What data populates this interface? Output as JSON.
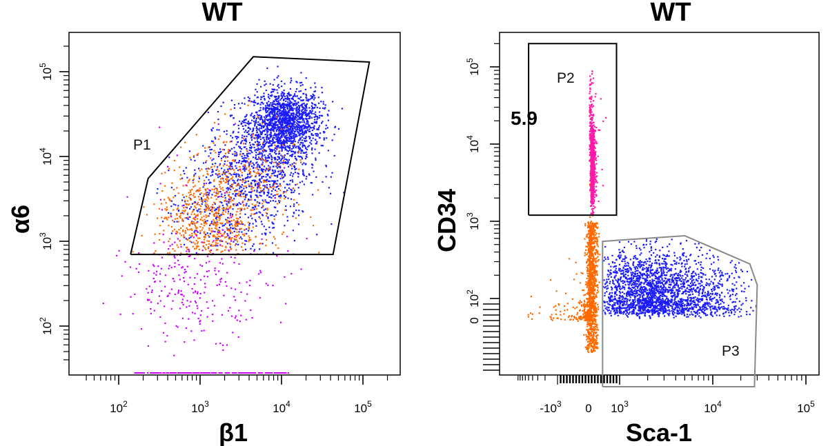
{
  "chart_data": [
    {
      "type": "scatter",
      "title": "WT",
      "xlabel": "β1",
      "ylabel": "α6",
      "x_scale": "log",
      "y_scale": "log",
      "xlim": [
        30,
        300000
      ],
      "ylim": [
        30,
        300000
      ],
      "x_ticks": [
        {
          "base": "10",
          "exp": "2"
        },
        {
          "base": "10",
          "exp": "3"
        },
        {
          "base": "10",
          "exp": "4"
        },
        {
          "base": "10",
          "exp": "5"
        }
      ],
      "y_ticks": [
        {
          "base": "10",
          "exp": "2"
        },
        {
          "base": "10",
          "exp": "3"
        },
        {
          "base": "10",
          "exp": "4"
        },
        {
          "base": "10",
          "exp": "5"
        }
      ],
      "gates": [
        {
          "name": "P1",
          "color": "#000000",
          "vertices": [
            [
              140,
              700
            ],
            [
              230,
              5500
            ],
            [
              4500,
              150000
            ],
            [
              120000,
              130000
            ],
            [
              43000,
              700
            ],
            [
              140,
              700
            ]
          ]
        }
      ],
      "series": [
        {
          "name": "blue",
          "color": "#1a1aff",
          "clusters": [
            {
              "x": 11000,
              "y": 26000,
              "sx": 0.22,
              "sy": 0.2,
              "n": 1500
            },
            {
              "x": 5000,
              "y": 8000,
              "sx": 0.32,
              "sy": 0.32,
              "n": 800
            },
            {
              "x": 2000,
              "y": 2500,
              "sx": 0.35,
              "sy": 0.32,
              "n": 350
            }
          ]
        },
        {
          "name": "orange",
          "color": "#ff6a00",
          "clusters": [
            {
              "x": 1200,
              "y": 1500,
              "sx": 0.32,
              "sy": 0.33,
              "n": 650
            },
            {
              "x": 3500,
              "y": 5000,
              "sx": 0.35,
              "sy": 0.35,
              "n": 250
            }
          ]
        },
        {
          "name": "magenta",
          "color": "#cc00ff",
          "clusters": [
            {
              "x": 900,
              "y": 300,
              "sx": 0.45,
              "sy": 0.3,
              "n": 250
            },
            {
              "x": 1500,
              "y": 3000,
              "sx": 0.5,
              "sy": 0.5,
              "n": 40
            }
          ]
        }
      ]
    },
    {
      "type": "scatter",
      "title": "WT",
      "xlabel": "Sca-1",
      "ylabel": "CD34",
      "x_scale": "biexponential",
      "y_scale": "biexponential",
      "xlim": [
        -5000,
        300000
      ],
      "ylim": [
        -300,
        300000
      ],
      "x_ticks": [
        {
          "base": "-10",
          "exp": "3"
        },
        {
          "base": "0",
          "exp": ""
        },
        {
          "base": "10",
          "exp": "3"
        },
        {
          "base": "10",
          "exp": "4"
        },
        {
          "base": "10",
          "exp": "5"
        }
      ],
      "y_ticks": [
        {
          "base": "0",
          "exp": ""
        },
        {
          "base": "10",
          "exp": "2"
        },
        {
          "base": "10",
          "exp": "3"
        },
        {
          "base": "10",
          "exp": "4"
        },
        {
          "base": "10",
          "exp": "5"
        }
      ],
      "gates": [
        {
          "name": "P2",
          "value": "5.9",
          "color": "#000000",
          "vertices": [
            [
              -5000,
              1200
            ],
            [
              -5000,
              200000
            ],
            [
              900,
              200000
            ],
            [
              900,
              1200
            ],
            [
              -5000,
              1200
            ]
          ]
        },
        {
          "name": "P3",
          "color": "#888888",
          "vertices": [
            [
              450,
              -300
            ],
            [
              450,
              550
            ],
            [
              5000,
              650
            ],
            [
              25000,
              280
            ],
            [
              30000,
              150
            ],
            [
              28000,
              -300
            ],
            [
              450,
              -300
            ]
          ]
        }
      ],
      "series": [
        {
          "name": "blue",
          "color": "#1a1aff",
          "clusters": [
            {
              "x": 2000,
              "y": 120,
              "sx": 0.28,
              "sy": 0.28,
              "n": 1800
            },
            {
              "x": 8000,
              "y": 100,
              "sx": 0.25,
              "sy": 0.28,
              "n": 500
            }
          ]
        },
        {
          "name": "orange",
          "color": "#ff6a00",
          "clusters": [
            {
              "x": 20,
              "y": 50,
              "sx": 0.02,
              "sy": 0.5,
              "n": 1500
            },
            {
              "x": -150,
              "y": 40,
              "sx": 0.6,
              "sy": 0.5,
              "n": 200
            }
          ]
        },
        {
          "name": "pink",
          "color": "#ff1aa8",
          "clusters": [
            {
              "x": 100,
              "y": 5000,
              "sx": 0.15,
              "sy": 0.25,
              "n": 900
            },
            {
              "x": 50,
              "y": 15000,
              "sx": 0.4,
              "sy": 0.35,
              "n": 150
            }
          ]
        }
      ]
    }
  ]
}
